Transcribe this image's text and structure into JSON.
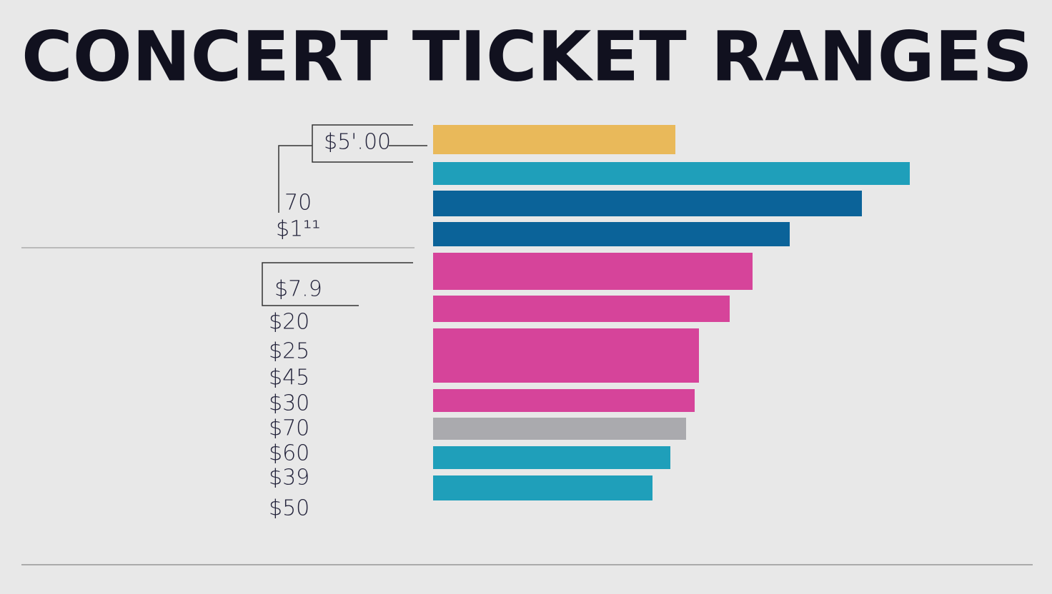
{
  "chart_data": {
    "type": "bar",
    "orientation": "horizontal",
    "title": "CONCERT TICKET RANGES",
    "annotations": [
      "$5'.00",
      "70",
      "$1¹¹",
      "$7.9",
      "$20",
      "$25",
      "$45",
      "$30",
      "$70",
      "$60",
      "$39",
      "$50"
    ],
    "values": [
      339,
      667,
      600,
      499,
      447,
      415,
      372,
      366,
      354,
      332,
      307
    ],
    "colors": [
      "#e9b95a",
      "#1f9fba",
      "#0b6399",
      "#0b6399",
      "#d6449a",
      "#d6449a",
      "#d6449a",
      "#d6449a",
      "#aaaaae",
      "#1f9fba",
      "#1f9fba"
    ],
    "xlim": [
      0,
      700
    ]
  }
}
